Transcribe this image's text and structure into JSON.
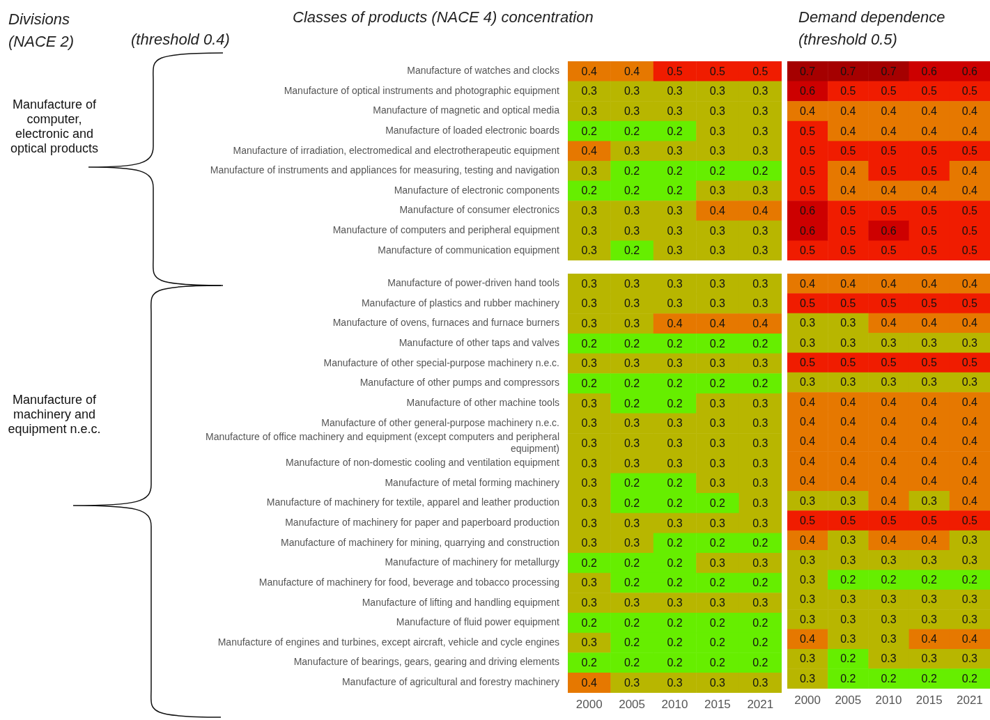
{
  "chart_data": [
    {
      "type": "heatmap",
      "title": "Classes of products (NACE 4) concentration",
      "subtitle": "(threshold 0.4)",
      "annotations": [
        "Divisions (NACE 2)",
        "Manufacture of computer, electronic and optical products"
      ],
      "tick_labels": "y",
      "data_labels": true,
      "categories": [
        "2000",
        "2005",
        "2010",
        "2015",
        "2021"
      ],
      "y_categories": [
        "Manufacture of watches and clocks",
        "Manufacture of optical instruments and photographic equipment",
        "Manufacture of magnetic and optical media",
        "Manufacture of loaded electronic boards",
        "Manufacture of irradiation, electromedical and electrotherapeutic equipment",
        "Manufacture of instruments and appliances for measuring, testing and navigation",
        "Manufacture of electronic components",
        "Manufacture of consumer electronics",
        "Manufacture of computers and peripheral equipment",
        "Manufacture of communication equipment"
      ],
      "cells": [
        [
          0.4,
          0.4,
          0.5,
          0.5,
          0.5
        ],
        [
          0.3,
          0.3,
          0.3,
          0.3,
          0.3
        ],
        [
          0.3,
          0.3,
          0.3,
          0.3,
          0.3
        ],
        [
          0.2,
          0.2,
          0.2,
          0.3,
          0.3
        ],
        [
          0.4,
          0.3,
          0.3,
          0.3,
          0.3
        ],
        [
          0.3,
          0.2,
          0.2,
          0.2,
          0.2
        ],
        [
          0.2,
          0.2,
          0.2,
          0.3,
          0.3
        ],
        [
          0.3,
          0.3,
          0.3,
          0.4,
          0.4
        ],
        [
          0.3,
          0.3,
          0.3,
          0.3,
          0.3
        ],
        [
          0.3,
          0.2,
          0.3,
          0.3,
          0.3
        ]
      ]
    },
    {
      "type": "heatmap",
      "title": "Demand dependence",
      "subtitle": "(threshold 0.5)",
      "tick_labels": false,
      "data_labels": true,
      "categories": [
        "2000",
        "2005",
        "2010",
        "2015",
        "2021"
      ],
      "y_categories": [
        null,
        null,
        null,
        null,
        null,
        null,
        null,
        null,
        null,
        null
      ],
      "cells": [
        [
          0.7,
          0.7,
          0.7,
          0.6,
          0.6
        ],
        [
          0.6,
          0.5,
          0.5,
          0.5,
          0.5
        ],
        [
          0.4,
          0.4,
          0.4,
          0.4,
          0.4
        ],
        [
          0.5,
          0.4,
          0.4,
          0.4,
          0.4
        ],
        [
          0.5,
          0.5,
          0.5,
          0.5,
          0.5
        ],
        [
          0.5,
          0.4,
          0.5,
          0.5,
          0.4
        ],
        [
          0.5,
          0.4,
          0.4,
          0.4,
          0.4
        ],
        [
          0.6,
          0.5,
          0.5,
          0.5,
          0.5
        ],
        [
          0.6,
          0.5,
          0.6,
          0.5,
          0.5
        ],
        [
          0.5,
          0.5,
          0.5,
          0.5,
          0.5
        ]
      ]
    },
    {
      "type": "heatmap",
      "annotations": [
        "Manufacture of machinery and equipment n.e.c."
      ],
      "data_labels": true,
      "categories": [
        "2000",
        "2005",
        "2010",
        "2015",
        "2021"
      ],
      "y_categories": [
        "Manufacture of power-driven hand tools",
        "Manufacture of plastics and rubber machinery",
        "Manufacture of ovens, furnaces and furnace burners",
        "Manufacture of other taps and valves",
        "Manufacture of other special-purpose machinery n.e.c.",
        "Manufacture of other pumps and compressors",
        "Manufacture of other machine tools",
        "Manufacture of other general-purpose machinery n.e.c.",
        "Manufacture of office machinery and equipment (except computers and peripheral equipment)",
        "Manufacture of non-domestic cooling and ventilation equipment",
        "Manufacture of metal forming machinery",
        "Manufacture of machinery for textile, apparel and leather production",
        "Manufacture of machinery for paper and paperboard production",
        "Manufacture of machinery for mining, quarrying and construction",
        "Manufacture of machinery for metallurgy",
        "Manufacture of machinery for food, beverage and tobacco processing",
        "Manufacture of lifting and handling equipment",
        "Manufacture of fluid power equipment",
        "Manufacture of engines and turbines, except aircraft, vehicle and cycle engines",
        "Manufacture of bearings, gears, gearing and driving elements",
        "Manufacture of agricultural and forestry machinery"
      ],
      "cells": [
        [
          0.3,
          0.3,
          0.3,
          0.3,
          0.3
        ],
        [
          0.3,
          0.3,
          0.3,
          0.3,
          0.3
        ],
        [
          0.3,
          0.3,
          0.4,
          0.4,
          0.4
        ],
        [
          0.2,
          0.2,
          0.2,
          0.2,
          0.2
        ],
        [
          0.3,
          0.3,
          0.3,
          0.3,
          0.3
        ],
        [
          0.2,
          0.2,
          0.2,
          0.2,
          0.2
        ],
        [
          0.3,
          0.2,
          0.2,
          0.3,
          0.3
        ],
        [
          0.3,
          0.3,
          0.3,
          0.3,
          0.3
        ],
        [
          0.3,
          0.3,
          0.3,
          0.3,
          0.3
        ],
        [
          0.3,
          0.3,
          0.3,
          0.3,
          0.3
        ],
        [
          0.3,
          0.2,
          0.2,
          0.3,
          0.3
        ],
        [
          0.3,
          0.2,
          0.2,
          0.2,
          0.3
        ],
        [
          0.3,
          0.3,
          0.3,
          0.3,
          0.3
        ],
        [
          0.3,
          0.3,
          0.2,
          0.2,
          0.2
        ],
        [
          0.2,
          0.2,
          0.2,
          0.3,
          0.3
        ],
        [
          0.3,
          0.2,
          0.2,
          0.2,
          0.2
        ],
        [
          0.3,
          0.3,
          0.3,
          0.3,
          0.3
        ],
        [
          0.2,
          0.2,
          0.2,
          0.2,
          0.2
        ],
        [
          0.3,
          0.2,
          0.2,
          0.2,
          0.2
        ],
        [
          0.2,
          0.2,
          0.2,
          0.2,
          0.2
        ],
        [
          0.4,
          0.3,
          0.3,
          0.3,
          0.3
        ]
      ]
    },
    {
      "type": "heatmap",
      "tick_labels": "x",
      "data_labels": true,
      "categories": [
        "2000",
        "2005",
        "2010",
        "2015",
        "2021"
      ],
      "y_categories": [
        null,
        null,
        null,
        null,
        null,
        null,
        null,
        null,
        null,
        null,
        null,
        null,
        null,
        null,
        null,
        null,
        null,
        null,
        null,
        null,
        null
      ],
      "cells": [
        [
          0.4,
          0.4,
          0.4,
          0.4,
          0.4
        ],
        [
          0.5,
          0.5,
          0.5,
          0.5,
          0.5
        ],
        [
          0.3,
          0.3,
          0.4,
          0.4,
          0.4
        ],
        [
          0.3,
          0.3,
          0.3,
          0.3,
          0.3
        ],
        [
          0.5,
          0.5,
          0.5,
          0.5,
          0.5
        ],
        [
          0.3,
          0.3,
          0.3,
          0.3,
          0.3
        ],
        [
          0.4,
          0.4,
          0.4,
          0.4,
          0.4
        ],
        [
          0.4,
          0.4,
          0.4,
          0.4,
          0.4
        ],
        [
          0.4,
          0.4,
          0.4,
          0.4,
          0.4
        ],
        [
          0.4,
          0.4,
          0.4,
          0.4,
          0.4
        ],
        [
          0.4,
          0.4,
          0.4,
          0.4,
          0.4
        ],
        [
          0.3,
          0.3,
          0.4,
          0.3,
          0.4
        ],
        [
          0.5,
          0.5,
          0.5,
          0.5,
          0.5
        ],
        [
          0.4,
          0.3,
          0.4,
          0.4,
          0.3
        ],
        [
          0.3,
          0.3,
          0.3,
          0.3,
          0.3
        ],
        [
          0.3,
          0.2,
          0.2,
          0.2,
          0.2
        ],
        [
          0.3,
          0.3,
          0.3,
          0.3,
          0.3
        ],
        [
          0.3,
          0.3,
          0.3,
          0.3,
          0.3
        ],
        [
          0.4,
          0.3,
          0.3,
          0.4,
          0.4
        ],
        [
          0.3,
          0.2,
          0.3,
          0.3,
          0.3
        ],
        [
          0.3,
          0.2,
          0.2,
          0.2,
          0.2
        ]
      ]
    }
  ]
}
